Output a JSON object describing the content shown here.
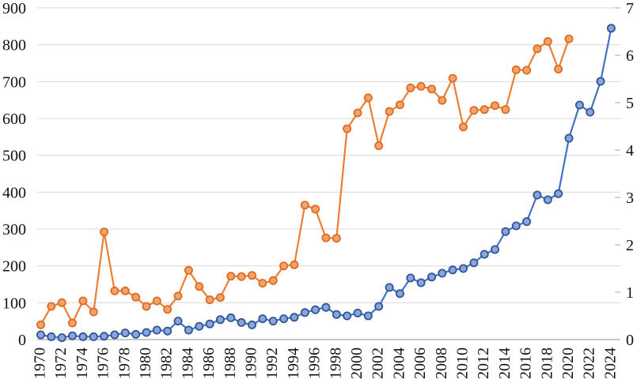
{
  "chart_data": {
    "type": "line",
    "title": "",
    "legend": "none",
    "grid": true,
    "x_axis": {
      "tick_labels": [
        "1970",
        "1972",
        "1974",
        "1976",
        "1978",
        "1980",
        "1982",
        "1984",
        "1986",
        "1988",
        "1990",
        "1992",
        "1994",
        "1996",
        "1998",
        "2000",
        "2002",
        "2004",
        "2006",
        "2008",
        "2010",
        "2012",
        "2014",
        "2016",
        "2018",
        "2020",
        "2022",
        "2024"
      ],
      "label_rotation_deg": 90
    },
    "left_axis": {
      "min": 0,
      "max": 900,
      "step": 100,
      "tick_labels": [
        "0",
        "100",
        "200",
        "300",
        "400",
        "500",
        "600",
        "700",
        "800",
        "900"
      ]
    },
    "right_axis": {
      "min": 0,
      "max": 7,
      "step": 1,
      "tick_labels": [
        "0",
        "1",
        "2",
        "3",
        "4",
        "5",
        "6",
        "7"
      ]
    },
    "series": [
      {
        "name": "orange-series",
        "axis": "left",
        "line_color": "#ED7D31",
        "marker_fill": "#F2A36D",
        "marker_stroke": "#E06B1F",
        "years": [
          1970,
          1971,
          1972,
          1973,
          1974,
          1975,
          1976,
          1977,
          1978,
          1979,
          1980,
          1981,
          1982,
          1983,
          1984,
          1985,
          1986,
          1987,
          1988,
          1989,
          1990,
          1991,
          1992,
          1993,
          1994,
          1995,
          1996,
          1997,
          1998,
          1999,
          2000,
          2001,
          2002,
          2003,
          2004,
          2005,
          2006,
          2007,
          2008,
          2009,
          2010,
          2011,
          2012,
          2013,
          2014,
          2015,
          2016,
          2017,
          2018,
          2019,
          2020
        ],
        "values": [
          40,
          90,
          100,
          45,
          105,
          75,
          292,
          132,
          132,
          115,
          90,
          105,
          82,
          118,
          188,
          144,
          108,
          114,
          172,
          171,
          174,
          153,
          160,
          200,
          203,
          365,
          354,
          276,
          275,
          572,
          615,
          656,
          526,
          619,
          637,
          683,
          687,
          680,
          649,
          709,
          577,
          622,
          624,
          635,
          624,
          732,
          731,
          789,
          809,
          734,
          816
        ]
      },
      {
        "name": "blue-series",
        "axis": "right",
        "line_color": "#4472C4",
        "marker_fill": "#8AA5DA",
        "marker_stroke": "#2F5597",
        "years": [
          1970,
          1971,
          1972,
          1973,
          1974,
          1975,
          1976,
          1977,
          1978,
          1979,
          1980,
          1981,
          1982,
          1983,
          1984,
          1985,
          1986,
          1987,
          1988,
          1989,
          1990,
          1991,
          1992,
          1993,
          1994,
          1995,
          1996,
          1997,
          1998,
          1999,
          2000,
          2001,
          2002,
          2003,
          2004,
          2005,
          2006,
          2007,
          2008,
          2009,
          2010,
          2011,
          2012,
          2013,
          2014,
          2015,
          2016,
          2017,
          2018,
          2019,
          2020,
          2021,
          2022,
          2023,
          2024
        ],
        "values": [
          0.1,
          0.06,
          0.04,
          0.08,
          0.06,
          0.06,
          0.07,
          0.1,
          0.14,
          0.11,
          0.15,
          0.2,
          0.18,
          0.39,
          0.2,
          0.28,
          0.33,
          0.42,
          0.46,
          0.36,
          0.31,
          0.44,
          0.39,
          0.44,
          0.47,
          0.57,
          0.63,
          0.68,
          0.53,
          0.5,
          0.56,
          0.5,
          0.7,
          1.1,
          0.97,
          1.3,
          1.2,
          1.32,
          1.4,
          1.47,
          1.5,
          1.62,
          1.8,
          1.9,
          2.28,
          2.4,
          2.49,
          3.05,
          2.95,
          3.08,
          4.25,
          4.95,
          4.8,
          5.45,
          6.57
        ]
      }
    ],
    "colors": {
      "gridline": "#D9D9D9",
      "axis_line": "#A6A6A6",
      "tick_mark": "#A6A6A6",
      "label_text": "#111111",
      "background": "#FFFFFF"
    }
  }
}
